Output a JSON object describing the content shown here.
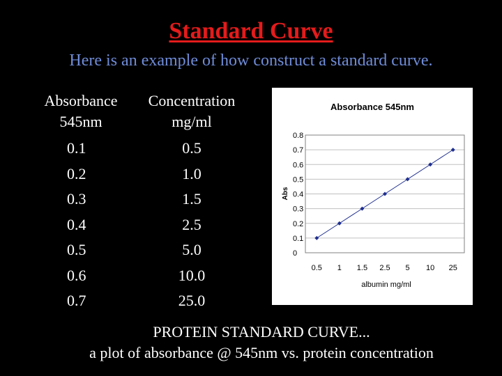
{
  "slide": {
    "title": "Standard Curve",
    "subtitle": "Here is an example of how construct a standard curve.",
    "caption_line1": "PROTEIN STANDARD CURVE...",
    "caption_line2": "a plot of absorbance @ 545nm vs.  protein concentration"
  },
  "table": {
    "col1_header_line1": "Absorbance",
    "col1_header_line2": "545nm",
    "col2_header_line1": "Concentration",
    "col2_header_line2": "mg/ml",
    "absorbance": [
      "0.1",
      "0.2",
      "0.3",
      "0.4",
      "0.5",
      "0.6",
      "0.7"
    ],
    "concentration": [
      "0.5",
      "1.0",
      "1.5",
      "2.5",
      "5.0",
      "10.0",
      "25.0"
    ]
  },
  "chart_data": {
    "type": "line",
    "title": "Absorbance 545nm",
    "xlabel": "albumin mg/ml",
    "ylabel": "Abs",
    "categories": [
      "0.5",
      "1",
      "1.5",
      "2.5",
      "5",
      "10",
      "25"
    ],
    "values": [
      0.1,
      0.2,
      0.3,
      0.4,
      0.5,
      0.6,
      0.7
    ],
    "ylim": [
      0,
      0.8
    ],
    "yticks": [
      "0",
      "0.1",
      "0.2",
      "0.3",
      "0.4",
      "0.5",
      "0.6",
      "0.7",
      "0.8"
    ],
    "grid": true,
    "colors": {
      "line": "#1f2f8f",
      "marker": "#1f2f8f",
      "grid": "#c0c0c0"
    }
  }
}
